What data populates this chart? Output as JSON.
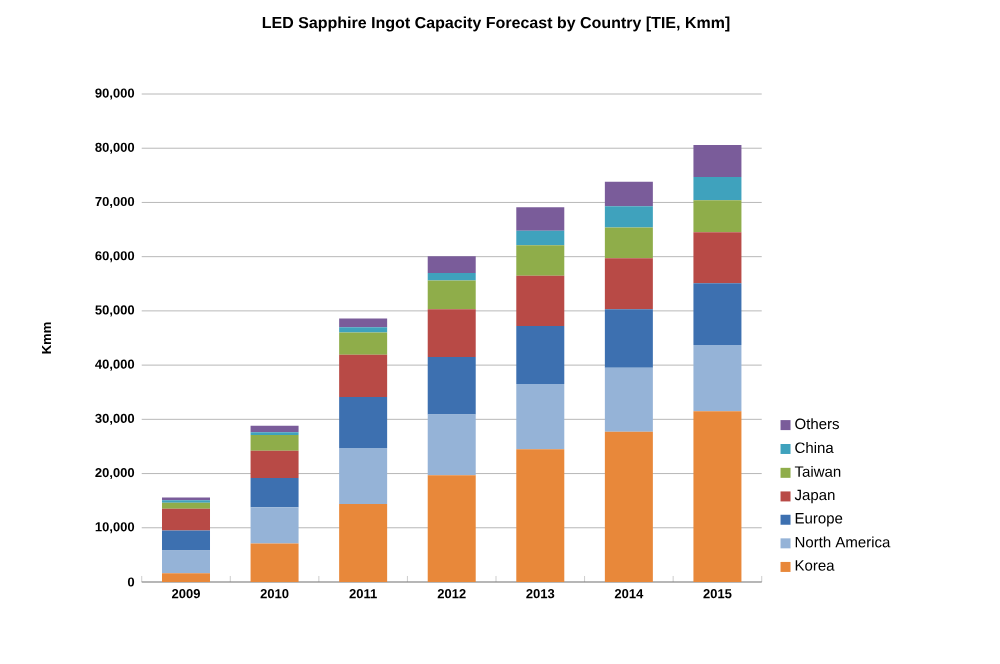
{
  "chart_data": {
    "type": "bar",
    "title": "LED Sapphire Ingot Capacity Forecast by Country [TIE, Kmm]",
    "ylabel": "Kmm",
    "categories": [
      "2009",
      "2010",
      "2011",
      "2012",
      "2013",
      "2014",
      "2015"
    ],
    "stacked": true,
    "grid": "y",
    "legend": "right",
    "ylim": [
      0,
      90000
    ],
    "yticks": [
      0,
      {
        "value": 10000,
        "label": "10,000"
      },
      {
        "value": 20000,
        "label": "20,000"
      },
      {
        "value": 30000,
        "label": "30,000"
      },
      {
        "value": 40000,
        "label": "40,000"
      },
      {
        "value": 50000,
        "label": "50,000"
      },
      {
        "value": 60000,
        "label": "60,000"
      },
      {
        "value": 70000,
        "label": "70,000"
      },
      {
        "value": 80000,
        "label": "80,000"
      },
      {
        "value": 90000,
        "label": "90,000"
      }
    ],
    "series": [
      {
        "name": "Korea",
        "color": "#e8883a",
        "values": [
          1600,
          7100,
          14400,
          19700,
          24500,
          27700,
          31500
        ]
      },
      {
        "name": "North America",
        "color": "#95b3d7",
        "values": [
          4200,
          6700,
          10300,
          11200,
          12000,
          11800,
          12200
        ]
      },
      {
        "name": "Europe",
        "color": "#3d70b0",
        "values": [
          3700,
          5400,
          9400,
          10600,
          10700,
          10800,
          11400
        ]
      },
      {
        "name": "Japan",
        "color": "#b84a46",
        "values": [
          4000,
          5000,
          7800,
          8800,
          9300,
          9400,
          9400
        ]
      },
      {
        "name": "Taiwan",
        "color": "#8fad4a",
        "values": [
          1100,
          2900,
          4100,
          5300,
          5600,
          5700,
          5900
        ]
      },
      {
        "name": "China",
        "color": "#3fa2bd",
        "values": [
          500,
          500,
          1000,
          1400,
          2700,
          3900,
          4300
        ]
      },
      {
        "name": "Others",
        "color": "#7a5c9a",
        "values": [
          500,
          1200,
          1600,
          3100,
          4300,
          4500,
          5900
        ]
      }
    ]
  }
}
